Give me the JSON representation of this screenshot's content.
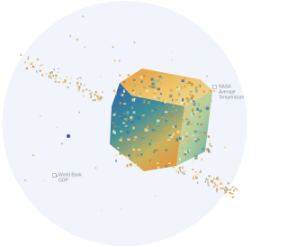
{
  "nasa_label": {
    "lines": [
      "NASA",
      "Average",
      "Temperature"
    ]
  },
  "world_bank_label": {
    "lines": [
      "World Bank",
      "GDP"
    ]
  }
}
